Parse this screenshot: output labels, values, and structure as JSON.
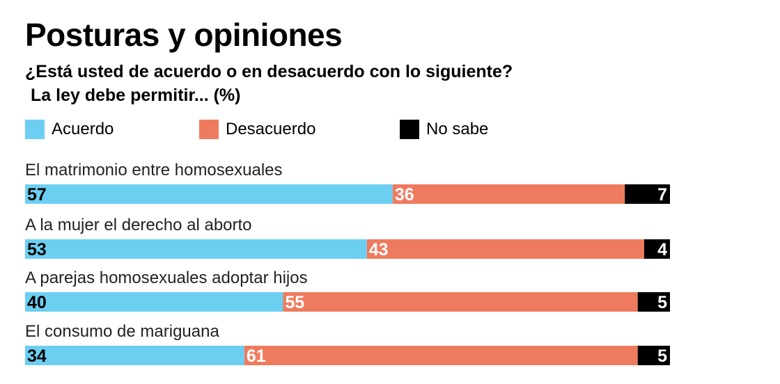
{
  "title": "Posturas y opiniones",
  "subtitle": "¿Está usted de acuerdo o en desacuerdo con lo siguiente?",
  "subtitle2": "La ley debe permitir... (%)",
  "legend": [
    {
      "label": "Acuerdo",
      "color": "#6ccff2"
    },
    {
      "label": "Desacuerdo",
      "color": "#ef7b5f"
    },
    {
      "label": "No sabe",
      "color": "#000000"
    }
  ],
  "chart_data": {
    "type": "bar",
    "orientation": "horizontal",
    "stacked": true,
    "title": "Posturas y opiniones",
    "subtitle": "¿Está usted de acuerdo o en desacuerdo con lo siguiente? La ley debe permitir... (%)",
    "categories": [
      "El matrimonio entre homosexuales",
      "A la mujer el derecho al aborto",
      "A parejas homosexuales adoptar hijos",
      "El consumo de mariguana"
    ],
    "series": [
      {
        "name": "Acuerdo",
        "color": "#6ccff2",
        "label_color": "#000000",
        "values": [
          57,
          53,
          40,
          34
        ]
      },
      {
        "name": "Desacuerdo",
        "color": "#ef7b5f",
        "label_color": "#ffffff",
        "values": [
          36,
          43,
          55,
          61
        ]
      },
      {
        "name": "No sabe",
        "color": "#000000",
        "label_color": "#ffffff",
        "values": [
          7,
          4,
          5,
          5
        ]
      }
    ],
    "xlim": [
      0,
      100
    ],
    "legend_position": "top"
  }
}
